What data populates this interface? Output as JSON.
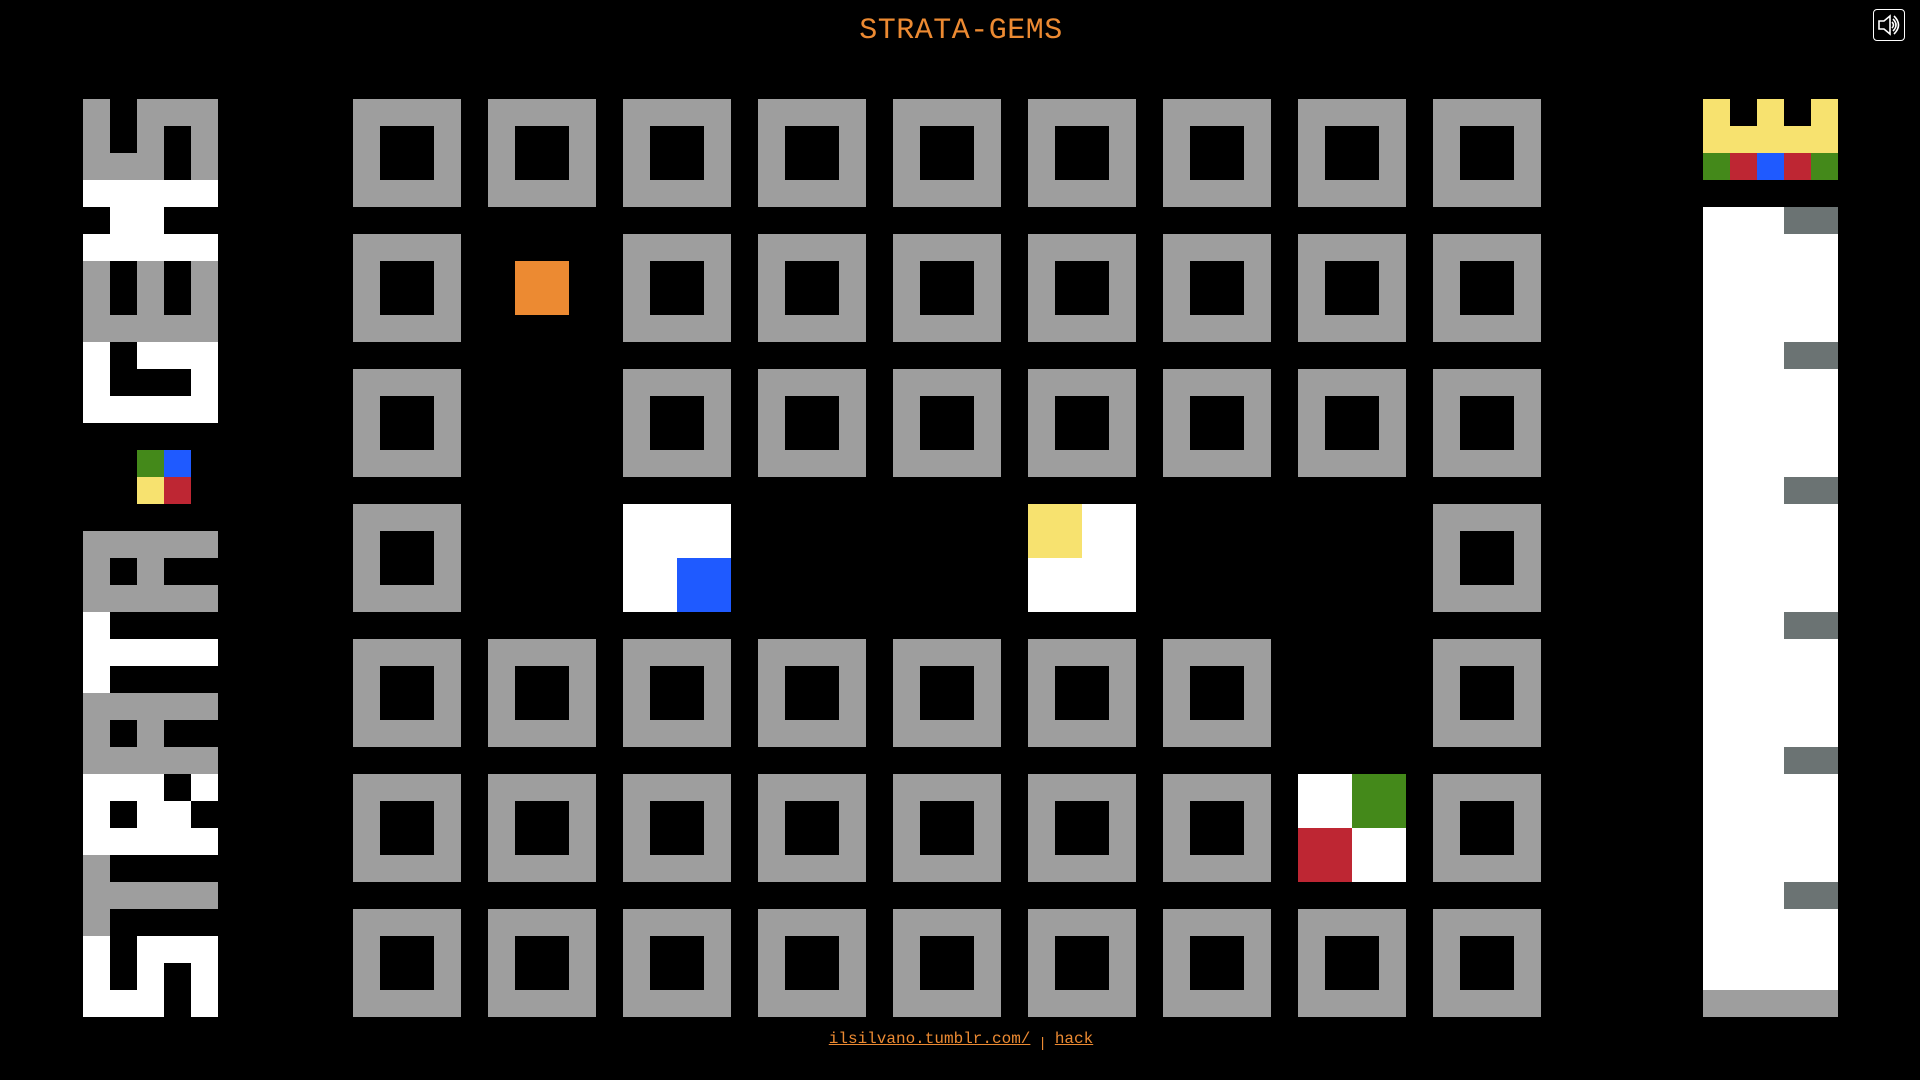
{
  "title": "STRATA-GEMS",
  "logo_text": "STRATA-GEMS",
  "sound_icon": "speaker-icon",
  "colors": {
    "background": "#000000",
    "accent": "#ec8a32",
    "frame": "#9e9e9e",
    "white": "#ffffff",
    "blue": "#1f5aff",
    "yellow": "#f7e26f",
    "red": "#be2633",
    "green": "#44891a",
    "notch": "#6b7373"
  },
  "board": {
    "columns": 9,
    "rows": [
      [
        "frame",
        "frame",
        "frame",
        "frame",
        "frame",
        "frame",
        "frame",
        "frame",
        "frame"
      ],
      [
        "frame",
        {
          "dot": "orange"
        },
        "frame",
        "frame",
        "frame",
        "frame",
        "frame",
        "frame",
        "frame"
      ],
      [
        "frame",
        "empty",
        "frame",
        "frame",
        "frame",
        "frame",
        "frame",
        "frame",
        "frame"
      ],
      [
        "frame",
        "empty",
        {
          "tl": "white",
          "tr": "white",
          "bl": "white",
          "br": "blue"
        },
        "empty",
        "empty",
        {
          "tl": "yellow",
          "tr": "white",
          "bl": "white",
          "br": "white"
        },
        "empty",
        "empty",
        "frame"
      ],
      [
        "frame",
        "frame",
        "frame",
        "frame",
        "frame",
        "frame",
        "frame",
        "empty",
        "frame"
      ],
      [
        "frame",
        "frame",
        "frame",
        "frame",
        "frame",
        "frame",
        "frame",
        {
          "tl": "white",
          "tr": "green",
          "bl": "red",
          "br": "white"
        },
        "frame"
      ],
      [
        "frame",
        "frame",
        "frame",
        "frame",
        "frame",
        "frame",
        "frame",
        "frame",
        "frame"
      ]
    ]
  },
  "crown": {
    "jewels": [
      "green",
      "red",
      "blue",
      "red",
      "green"
    ]
  },
  "meter": {
    "notches": 6
  },
  "footer": {
    "link1": "ilsilvano.tumblr.com/",
    "separator": "|",
    "link2": "hack"
  }
}
